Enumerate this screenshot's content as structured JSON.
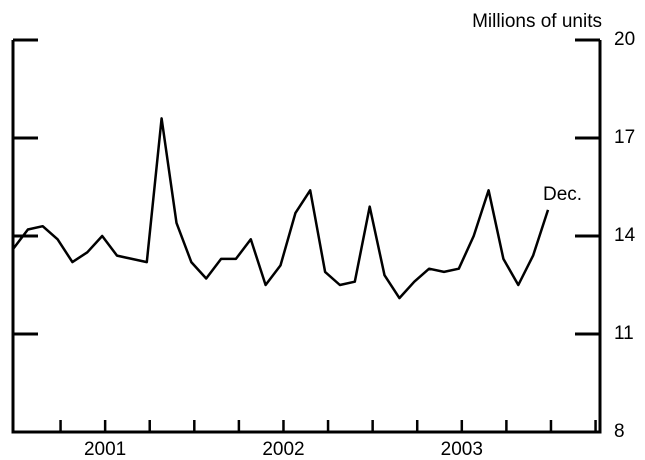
{
  "chart_data": {
    "type": "line",
    "unit_label": "Millions of units",
    "annotation": "Dec.",
    "categories": [
      null,
      null,
      null,
      null,
      null,
      null,
      null,
      null,
      null,
      null,
      null,
      null,
      null,
      null,
      null,
      null,
      null,
      null,
      null,
      null,
      null,
      null,
      null,
      null,
      null,
      null,
      null,
      null,
      null,
      null,
      null,
      null,
      null,
      null,
      null,
      null,
      null
    ],
    "year_labels": [
      "2001",
      "2002",
      "2003"
    ],
    "series": [
      {
        "color": "#000000",
        "values": [
          13.6,
          14.2,
          14.3,
          13.9,
          13.2,
          13.5,
          14.0,
          13.4,
          13.3,
          13.2,
          17.6,
          14.4,
          13.2,
          12.7,
          13.3,
          13.3,
          13.9,
          12.5,
          13.1,
          14.7,
          15.4,
          12.9,
          12.5,
          12.6,
          14.9,
          12.8,
          12.1,
          12.6,
          13.0,
          12.9,
          13.0,
          14.0,
          15.4,
          13.3,
          12.5,
          13.4,
          14.8
        ]
      }
    ],
    "ylim": [
      8,
      20
    ],
    "yticks": [
      8,
      11,
      14,
      17,
      20
    ]
  }
}
